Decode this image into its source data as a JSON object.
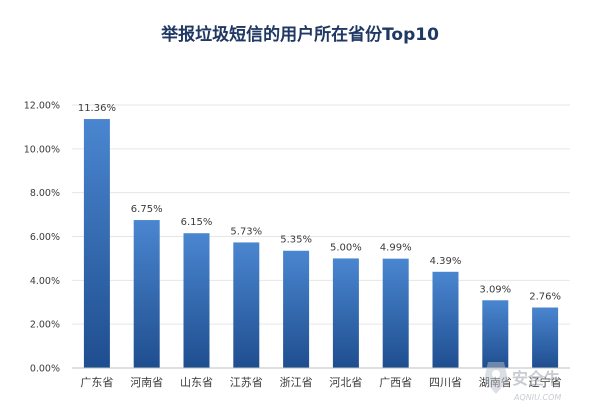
{
  "chart_data": {
    "type": "bar",
    "title": "举报垃圾短信的用户所在省份Top10",
    "categories": [
      "广东省",
      "河南省",
      "山东省",
      "江苏省",
      "浙江省",
      "河北省",
      "广西省",
      "四川省",
      "湖南省",
      "辽宁省"
    ],
    "values": [
      11.36,
      6.75,
      6.15,
      5.73,
      5.35,
      5.0,
      4.99,
      4.39,
      3.09,
      2.76
    ],
    "data_labels": [
      "11.36%",
      "6.75%",
      "6.15%",
      "5.73%",
      "5.35%",
      "5.00%",
      "4.99%",
      "4.39%",
      "3.09%",
      "2.76%"
    ],
    "ylim": [
      0,
      12
    ],
    "yticks": [
      0,
      2,
      4,
      6,
      8,
      10,
      12
    ],
    "ytick_labels": [
      "0.00%",
      "2.00%",
      "4.00%",
      "6.00%",
      "8.00%",
      "10.00%",
      "12.00%"
    ],
    "grid": true,
    "bar_color_top": "#4a86d0",
    "bar_color_bottom": "#1f4e8f"
  },
  "watermark": {
    "text": "安全牛",
    "subtext": "AQNIU.COM"
  }
}
